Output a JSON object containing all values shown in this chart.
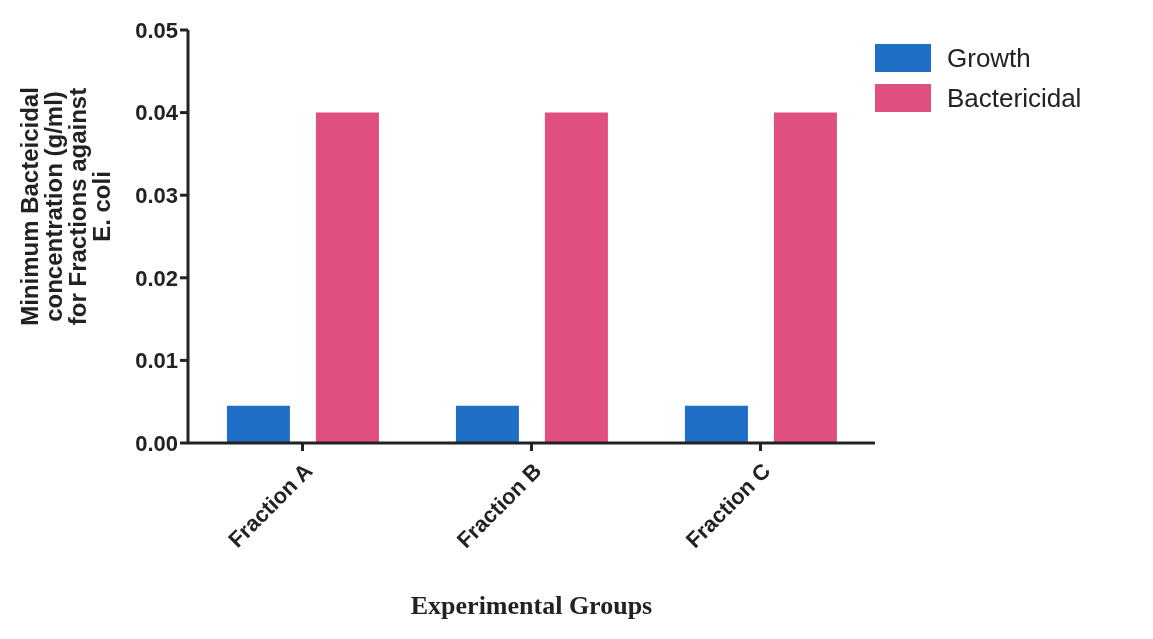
{
  "chart_data": {
    "type": "bar",
    "categories": [
      "Fraction A",
      "Fraction B",
      "Fraction C"
    ],
    "series": [
      {
        "name": "Growth",
        "color": "#1f6fc6",
        "values": [
          0.0045,
          0.0045,
          0.0045
        ]
      },
      {
        "name": "Bactericidal",
        "color": "#e0507e",
        "values": [
          0.04,
          0.04,
          0.04
        ]
      }
    ],
    "xlabel": "Experimental Groups",
    "ylabel": "Minimum Bacteicidal\nconcentration (g/ml)\nfor Fractions against\nE. coli",
    "ylim": [
      0,
      0.05
    ],
    "yticks": [
      {
        "value": 0,
        "label": "0.00"
      },
      {
        "value": 0.01,
        "label": "0.01"
      },
      {
        "value": 0.02,
        "label": "0.02"
      },
      {
        "value": 0.03,
        "label": "0.03"
      },
      {
        "value": 0.04,
        "label": "0.04"
      },
      {
        "value": 0.05,
        "label": "0.05"
      }
    ],
    "grid": false,
    "legend": "top right"
  }
}
